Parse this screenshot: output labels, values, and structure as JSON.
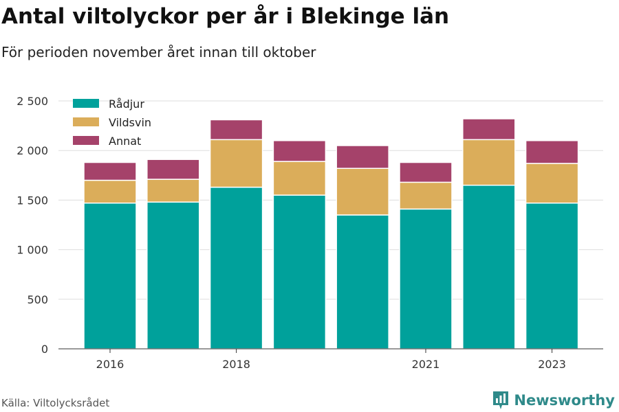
{
  "header": {
    "title": "Antal viltolyckor per år i Blekinge län",
    "subtitle": "För perioden november året innan till oktober"
  },
  "footer": {
    "source": "Källa: Viltolycksrådet",
    "brand": "Newsworthy"
  },
  "colors": {
    "radjur": "#00a19b",
    "vildsvin": "#dbad5a",
    "annat": "#a5426a",
    "grid": "#dddddd",
    "brand": "#2f8a8a"
  },
  "chart_data": {
    "type": "bar",
    "stacked": true,
    "categories": [
      "2016",
      "2017",
      "2018",
      "2019",
      "2020",
      "2021",
      "2022",
      "2023"
    ],
    "x_tick_labels": [
      "2016",
      "",
      "2018",
      "",
      "",
      "2021",
      "",
      "2023"
    ],
    "series": [
      {
        "name": "Rådjur",
        "color": "#00a19b",
        "values": [
          1470,
          1480,
          1630,
          1550,
          1350,
          1410,
          1650,
          1470
        ]
      },
      {
        "name": "Vildsvin",
        "color": "#dbad5a",
        "values": [
          230,
          230,
          480,
          340,
          470,
          270,
          460,
          400
        ]
      },
      {
        "name": "Annat",
        "color": "#a5426a",
        "values": [
          180,
          200,
          200,
          210,
          230,
          200,
          210,
          230
        ]
      }
    ],
    "yticks": [
      0,
      500,
      1000,
      1500,
      2000,
      2500
    ],
    "ytick_labels": [
      "0",
      "500",
      "1 000",
      "1 500",
      "2 000",
      "2 500"
    ],
    "ylim": [
      0,
      2500
    ],
    "grid": true,
    "legend": "top-left"
  }
}
